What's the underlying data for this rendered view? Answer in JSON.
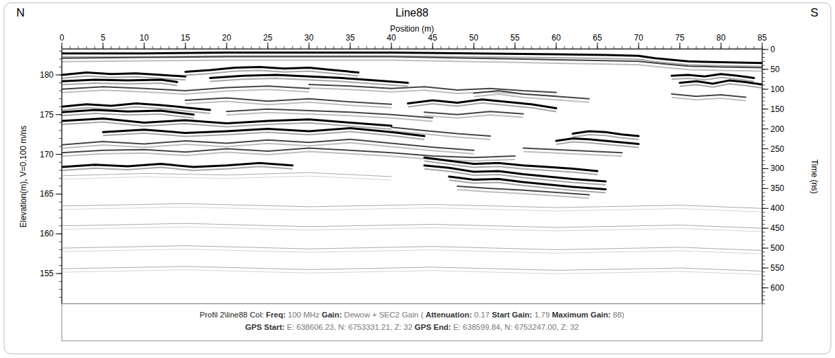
{
  "chart_data": {
    "type": "radargram",
    "title": "Line88",
    "left_label": "N",
    "right_label": "S",
    "xlabel": "Position (m)",
    "ylabel": "Elevation(m), V=0.100 m/ns",
    "y2label": "Time (ns)",
    "xlim": [
      0,
      85
    ],
    "xticks": [
      0,
      5,
      10,
      15,
      20,
      25,
      30,
      35,
      40,
      45,
      50,
      55,
      60,
      65,
      70,
      75,
      80,
      85
    ],
    "ylim": [
      151.2,
      183.2
    ],
    "yticks": [
      155,
      160,
      165,
      170,
      175,
      180
    ],
    "y2lim": [
      0,
      640
    ],
    "y2ticks": [
      0,
      50,
      100,
      150,
      200,
      250,
      300,
      350,
      400,
      450,
      500,
      550,
      600
    ],
    "caption": [
      [
        {
          "text": "Profil 2\\line88  Col: "
        },
        {
          "label": "Freq:",
          "value": "100 MHz"
        },
        {
          "label": "Gain:",
          "value": "Dewow + SEC2 Gain ("
        },
        {
          "label": "Attenuation:",
          "value": "0.17"
        },
        {
          "label": "Start Gain:",
          "value": "1.79"
        },
        {
          "label": "Maximum Gain:",
          "value": "88)"
        }
      ],
      [
        {
          "label": "GPS Start:",
          "value": "E: 638606.23, N: 6753331.21, Z: 32"
        },
        {
          "label": "GPS End:",
          "value": "E: 638599.84, N: 6753247.00, Z: 32"
        }
      ]
    ],
    "reflectors": [
      {
        "color": "#000000",
        "x": [
          0,
          10,
          20,
          30,
          40,
          50,
          60,
          66,
          70,
          72,
          76,
          80,
          85
        ],
        "y": [
          182.7,
          182.7,
          182.8,
          182.8,
          182.8,
          182.7,
          182.6,
          182.5,
          182.4,
          182.1,
          181.7,
          181.6,
          181.5
        ]
      },
      {
        "color": "#444444",
        "x": [
          0,
          10,
          20,
          30,
          40,
          50,
          60,
          66,
          70,
          72,
          76,
          80,
          85
        ],
        "y": [
          182.1,
          182.2,
          182.3,
          182.3,
          182.3,
          182.1,
          181.9,
          181.8,
          181.7,
          181.5,
          181.1,
          181.0,
          180.9
        ]
      },
      {
        "color": "#000000",
        "x": [
          0,
          3,
          6,
          9,
          12,
          15
        ],
        "y": [
          180.0,
          180.3,
          180.1,
          180.2,
          180.0,
          179.8
        ]
      },
      {
        "color": "#000000",
        "x": [
          0,
          4,
          8,
          12,
          14
        ],
        "y": [
          179.2,
          179.4,
          179.3,
          179.4,
          179.1
        ]
      },
      {
        "color": "#000000",
        "x": [
          15,
          18,
          21,
          24,
          27,
          30,
          33,
          36
        ],
        "y": [
          180.4,
          180.6,
          180.9,
          181.0,
          180.8,
          180.9,
          180.6,
          180.3
        ]
      },
      {
        "color": "#000000",
        "x": [
          18,
          22,
          26,
          30,
          34,
          38,
          42
        ],
        "y": [
          179.6,
          179.9,
          180.0,
          179.8,
          179.6,
          179.3,
          179.0
        ]
      },
      {
        "color": "#444444",
        "x": [
          0,
          5,
          10,
          15,
          20,
          25,
          30
        ],
        "y": [
          178.2,
          178.5,
          178.3,
          178.0,
          178.4,
          178.6,
          178.3
        ]
      },
      {
        "color": "#444444",
        "x": [
          30,
          35,
          40,
          44,
          48,
          52,
          56,
          60
        ],
        "y": [
          178.8,
          178.6,
          178.3,
          178.5,
          178.1,
          178.3,
          178.0,
          177.8
        ]
      },
      {
        "color": "#000000",
        "x": [
          0,
          3,
          6,
          9,
          12,
          15,
          18
        ],
        "y": [
          176.0,
          176.3,
          176.1,
          176.4,
          176.2,
          175.9,
          175.6
        ]
      },
      {
        "color": "#000000",
        "x": [
          0,
          4,
          8,
          12,
          16
        ],
        "y": [
          175.3,
          175.6,
          175.4,
          175.5,
          175.0
        ]
      },
      {
        "color": "#444444",
        "x": [
          15,
          20,
          25,
          30,
          35,
          40
        ],
        "y": [
          176.8,
          177.1,
          176.7,
          177.0,
          176.6,
          176.3
        ]
      },
      {
        "color": "#000000",
        "x": [
          0,
          5,
          10,
          15,
          20,
          25,
          30,
          35,
          40
        ],
        "y": [
          174.2,
          174.5,
          174.0,
          174.3,
          173.9,
          174.2,
          174.4,
          174.0,
          173.6
        ]
      },
      {
        "color": "#444444",
        "x": [
          20,
          25,
          30,
          35,
          40,
          45
        ],
        "y": [
          175.4,
          175.7,
          175.5,
          175.3,
          175.0,
          174.6
        ]
      },
      {
        "color": "#000000",
        "x": [
          5,
          10,
          15,
          20,
          25,
          30,
          35,
          40,
          44
        ],
        "y": [
          172.8,
          173.1,
          172.7,
          172.9,
          173.2,
          172.9,
          173.3,
          172.8,
          172.3
        ]
      },
      {
        "color": "#444444",
        "x": [
          0,
          5,
          10,
          15,
          20,
          25,
          30,
          35,
          40,
          45,
          50
        ],
        "y": [
          171.2,
          171.6,
          171.3,
          171.7,
          171.4,
          171.8,
          171.5,
          171.9,
          171.4,
          170.9,
          170.5
        ]
      },
      {
        "color": "#444444",
        "x": [
          0,
          5,
          10,
          15,
          20,
          25,
          30,
          35,
          40,
          45,
          50,
          55
        ],
        "y": [
          170.2,
          170.5,
          170.6,
          170.3,
          170.7,
          170.4,
          170.8,
          170.5,
          170.2,
          169.8,
          169.6,
          169.8
        ]
      },
      {
        "color": "#000000",
        "x": [
          0,
          4,
          8,
          12,
          16,
          20,
          24,
          28
        ],
        "y": [
          168.4,
          168.7,
          168.5,
          168.8,
          168.4,
          168.6,
          168.9,
          168.6
        ]
      },
      {
        "color": "#aaaaaa",
        "x": [
          0,
          10,
          20,
          30,
          40
        ],
        "y": [
          167.3,
          167.6,
          167.4,
          167.7,
          167.2
        ]
      },
      {
        "color": "#000000",
        "x": [
          42,
          45,
          48,
          51,
          54,
          57,
          60
        ],
        "y": [
          176.4,
          176.8,
          176.5,
          176.9,
          176.6,
          176.3,
          175.8
        ]
      },
      {
        "color": "#444444",
        "x": [
          44,
          48,
          52,
          56
        ],
        "y": [
          175.3,
          175.0,
          175.4,
          175.1
        ]
      },
      {
        "color": "#444444",
        "x": [
          50,
          53,
          56,
          60,
          64
        ],
        "y": [
          177.7,
          178.0,
          177.6,
          177.3,
          177.0
        ]
      },
      {
        "color": "#000000",
        "x": [
          44,
          47,
          50,
          53,
          56,
          59,
          62,
          65
        ],
        "y": [
          169.6,
          169.2,
          168.8,
          168.9,
          168.6,
          168.4,
          168.2,
          167.9
        ]
      },
      {
        "color": "#000000",
        "x": [
          44,
          47,
          50,
          53,
          56,
          59,
          62,
          66
        ],
        "y": [
          168.6,
          168.3,
          167.8,
          167.9,
          167.5,
          167.2,
          166.9,
          166.6
        ]
      },
      {
        "color": "#000000",
        "x": [
          47,
          50,
          53,
          56,
          59,
          62,
          66
        ],
        "y": [
          167.2,
          166.8,
          166.9,
          166.5,
          166.2,
          165.9,
          165.6
        ]
      },
      {
        "color": "#444444",
        "x": [
          48,
          52,
          56,
          60,
          64
        ],
        "y": [
          166.0,
          165.7,
          165.5,
          165.2,
          164.9
        ]
      },
      {
        "color": "#000000",
        "x": [
          62,
          64,
          66,
          68,
          70
        ],
        "y": [
          172.6,
          172.9,
          172.8,
          172.5,
          172.3
        ]
      },
      {
        "color": "#000000",
        "x": [
          60,
          62,
          64,
          66,
          68,
          70
        ],
        "y": [
          171.7,
          172.0,
          171.9,
          171.7,
          171.5,
          171.3
        ]
      },
      {
        "color": "#444444",
        "x": [
          56,
          60,
          64,
          68
        ],
        "y": [
          170.8,
          170.6,
          170.4,
          170.2
        ]
      },
      {
        "color": "#444444",
        "x": [
          40,
          44,
          48,
          52
        ],
        "y": [
          173.4,
          173.0,
          172.6,
          172.3
        ]
      },
      {
        "color": "#000000",
        "x": [
          74,
          76,
          78,
          80,
          82,
          84
        ],
        "y": [
          179.9,
          180.0,
          179.8,
          180.1,
          179.9,
          179.6
        ]
      },
      {
        "color": "#000000",
        "x": [
          75,
          77,
          79,
          81,
          83,
          85
        ],
        "y": [
          179.0,
          179.2,
          178.9,
          179.3,
          179.1,
          178.8
        ]
      },
      {
        "color": "#444444",
        "x": [
          74,
          77,
          80,
          83
        ],
        "y": [
          177.6,
          177.3,
          177.5,
          177.2
        ]
      },
      {
        "color": "#aaaaaa",
        "x": [
          0,
          15,
          30,
          45,
          60,
          75,
          85
        ],
        "y": [
          163.5,
          163.8,
          163.4,
          163.7,
          163.3,
          163.6,
          163.2
        ]
      },
      {
        "color": "#aaaaaa",
        "x": [
          0,
          15,
          30,
          45,
          60,
          75,
          85
        ],
        "y": [
          161.0,
          161.3,
          160.9,
          161.2,
          160.8,
          161.1,
          160.7
        ]
      },
      {
        "color": "#aaaaaa",
        "x": [
          0,
          15,
          30,
          45,
          60,
          75,
          85
        ],
        "y": [
          158.2,
          158.5,
          158.1,
          158.4,
          158.0,
          158.3,
          157.9
        ]
      },
      {
        "color": "#aaaaaa",
        "x": [
          0,
          15,
          30,
          45,
          60,
          75,
          85
        ],
        "y": [
          155.6,
          155.9,
          155.5,
          155.8,
          155.4,
          155.7,
          155.3
        ]
      }
    ]
  }
}
